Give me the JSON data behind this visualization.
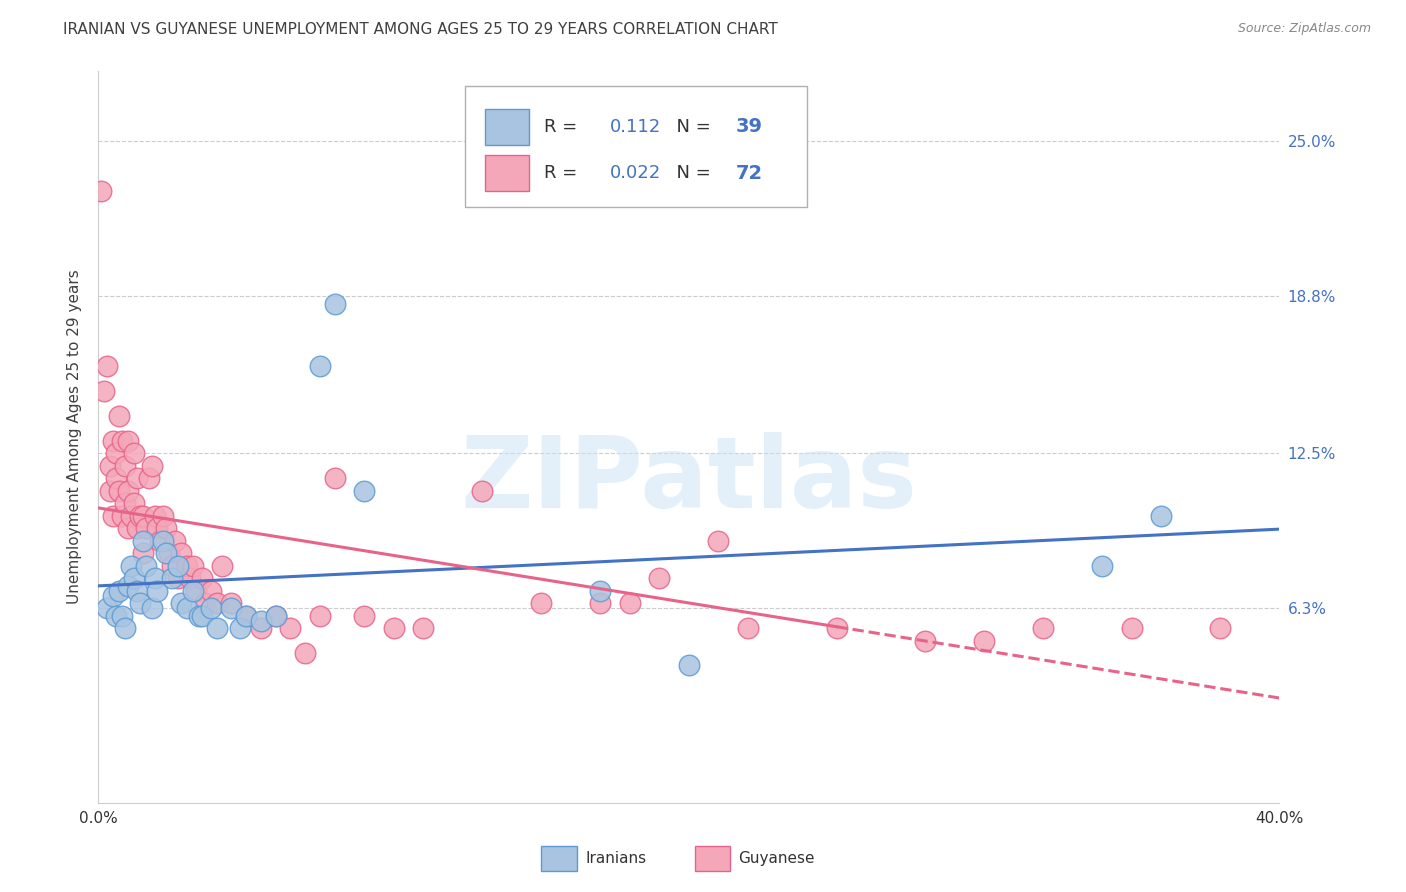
{
  "title": "IRANIAN VS GUYANESE UNEMPLOYMENT AMONG AGES 25 TO 29 YEARS CORRELATION CHART",
  "source": "Source: ZipAtlas.com",
  "ylabel": "Unemployment Among Ages 25 to 29 years",
  "ytick_labels": [
    "",
    "6.3%",
    "12.5%",
    "18.8%",
    "25.0%"
  ],
  "ytick_values": [
    0.0,
    0.063,
    0.125,
    0.188,
    0.25
  ],
  "xmin": 0.0,
  "xmax": 0.4,
  "ymin": -0.015,
  "ymax": 0.278,
  "legend_iranians_R": "0.112",
  "legend_iranians_N": "39",
  "legend_guyanese_R": "0.022",
  "legend_guyanese_N": "72",
  "color_iranians_fill": "#a8c4e0",
  "color_guyanese_fill": "#f4a7b9",
  "color_iranians_edge": "#5b9bd5",
  "color_guyanese_edge": "#e8638a",
  "color_iranians_line": "#4472c4",
  "color_guyanese_line": "#e8638a",
  "color_title": "#404040",
  "color_blue_label": "#4472c4",
  "color_source": "#888888",
  "watermark_text": "ZIPatlas",
  "iranians_x": [
    0.003,
    0.005,
    0.006,
    0.007,
    0.008,
    0.009,
    0.01,
    0.011,
    0.012,
    0.013,
    0.014,
    0.015,
    0.016,
    0.018,
    0.019,
    0.02,
    0.022,
    0.023,
    0.025,
    0.027,
    0.028,
    0.03,
    0.032,
    0.034,
    0.035,
    0.038,
    0.04,
    0.045,
    0.048,
    0.05,
    0.055,
    0.06,
    0.075,
    0.08,
    0.09,
    0.17,
    0.2,
    0.34,
    0.36
  ],
  "iranians_y": [
    0.063,
    0.068,
    0.06,
    0.07,
    0.06,
    0.055,
    0.072,
    0.08,
    0.075,
    0.07,
    0.065,
    0.09,
    0.08,
    0.063,
    0.075,
    0.07,
    0.09,
    0.085,
    0.075,
    0.08,
    0.065,
    0.063,
    0.07,
    0.06,
    0.06,
    0.063,
    0.055,
    0.063,
    0.055,
    0.06,
    0.058,
    0.06,
    0.16,
    0.185,
    0.11,
    0.07,
    0.04,
    0.08,
    0.1
  ],
  "guyanese_x": [
    0.001,
    0.002,
    0.003,
    0.004,
    0.004,
    0.005,
    0.005,
    0.006,
    0.006,
    0.007,
    0.007,
    0.008,
    0.008,
    0.009,
    0.009,
    0.01,
    0.01,
    0.01,
    0.011,
    0.012,
    0.012,
    0.013,
    0.013,
    0.014,
    0.015,
    0.015,
    0.016,
    0.017,
    0.018,
    0.019,
    0.02,
    0.021,
    0.022,
    0.023,
    0.024,
    0.025,
    0.026,
    0.027,
    0.028,
    0.03,
    0.031,
    0.032,
    0.033,
    0.035,
    0.036,
    0.038,
    0.04,
    0.042,
    0.045,
    0.05,
    0.055,
    0.06,
    0.065,
    0.07,
    0.075,
    0.08,
    0.09,
    0.1,
    0.11,
    0.13,
    0.15,
    0.17,
    0.18,
    0.19,
    0.21,
    0.22,
    0.25,
    0.28,
    0.3,
    0.32,
    0.35,
    0.38
  ],
  "guyanese_y": [
    0.23,
    0.15,
    0.16,
    0.12,
    0.11,
    0.13,
    0.1,
    0.115,
    0.125,
    0.14,
    0.11,
    0.13,
    0.1,
    0.105,
    0.12,
    0.095,
    0.11,
    0.13,
    0.1,
    0.125,
    0.105,
    0.115,
    0.095,
    0.1,
    0.1,
    0.085,
    0.095,
    0.115,
    0.12,
    0.1,
    0.095,
    0.09,
    0.1,
    0.095,
    0.085,
    0.08,
    0.09,
    0.075,
    0.085,
    0.08,
    0.075,
    0.08,
    0.07,
    0.075,
    0.065,
    0.07,
    0.065,
    0.08,
    0.065,
    0.06,
    0.055,
    0.06,
    0.055,
    0.045,
    0.06,
    0.115,
    0.06,
    0.055,
    0.055,
    0.11,
    0.065,
    0.065,
    0.065,
    0.075,
    0.09,
    0.055,
    0.055,
    0.05,
    0.05,
    0.055,
    0.055,
    0.055
  ]
}
